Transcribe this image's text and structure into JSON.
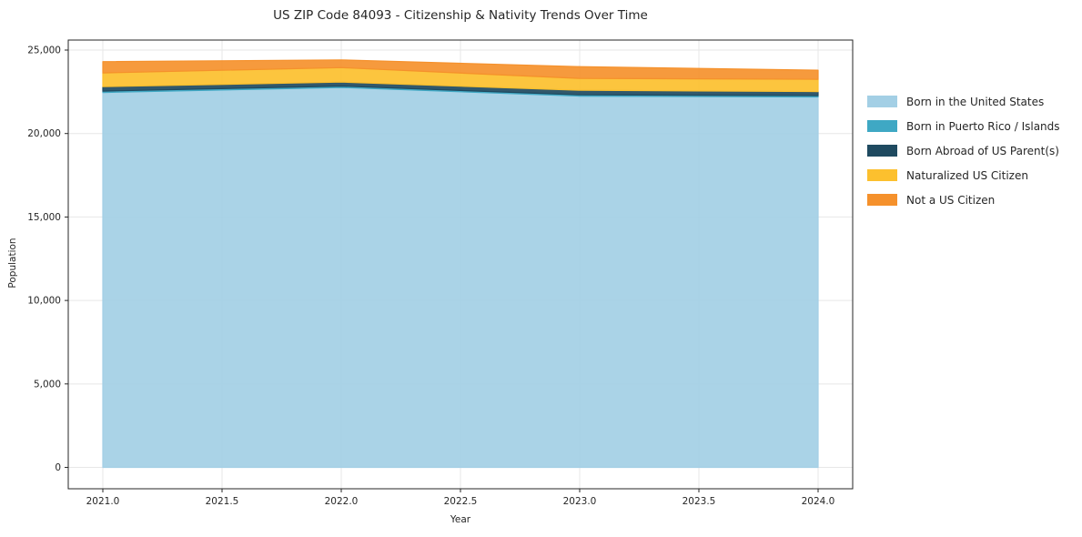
{
  "chart_data": {
    "type": "area",
    "stacked": true,
    "title": "US ZIP Code 84093 - Citizenship & Nativity Trends Over Time",
    "xlabel": "Year",
    "ylabel": "Population",
    "x": [
      2021,
      2022,
      2023,
      2024
    ],
    "series": [
      {
        "name": "Born in the United States",
        "color": "#a3cfe5",
        "values": [
          22460,
          22760,
          22240,
          22190
        ]
      },
      {
        "name": "Born in Puerto Rico / Islands",
        "color": "#3fa8c4",
        "values": [
          80,
          80,
          80,
          80
        ]
      },
      {
        "name": "Born Abroad of US Parent(s)",
        "color": "#1f4a60",
        "values": [
          270,
          240,
          270,
          245
        ]
      },
      {
        "name": "Naturalized US Citizen",
        "color": "#fcc02e",
        "values": [
          820,
          870,
          710,
          735
        ]
      },
      {
        "name": "Not a US Citizen",
        "color": "#f5912c",
        "values": [
          680,
          460,
          710,
          545
        ]
      }
    ],
    "totals": [
      24310,
      24410,
      24010,
      23795
    ],
    "xticks": [
      2021.0,
      2021.5,
      2022.0,
      2022.5,
      2023.0,
      2023.5,
      2024.0
    ],
    "xtick_labels": [
      "2021.0",
      "2021.5",
      "2022.0",
      "2022.5",
      "2023.0",
      "2023.5",
      "2024.0"
    ],
    "yticks": [
      0,
      5000,
      10000,
      15000,
      20000,
      25000
    ],
    "ytick_labels": [
      "0",
      "5,000",
      "10,000",
      "15,000",
      "20,000",
      "25,000"
    ],
    "xlim": [
      2020.855,
      2024.145
    ],
    "ylim": [
      -1280,
      25600
    ],
    "grid": true,
    "grid_color": "#e7e7e7",
    "border_color": "#262626",
    "text_color": "#262626",
    "background": "#ffffff",
    "legend_position": "right of plot",
    "fill_opacity": 0.92
  }
}
